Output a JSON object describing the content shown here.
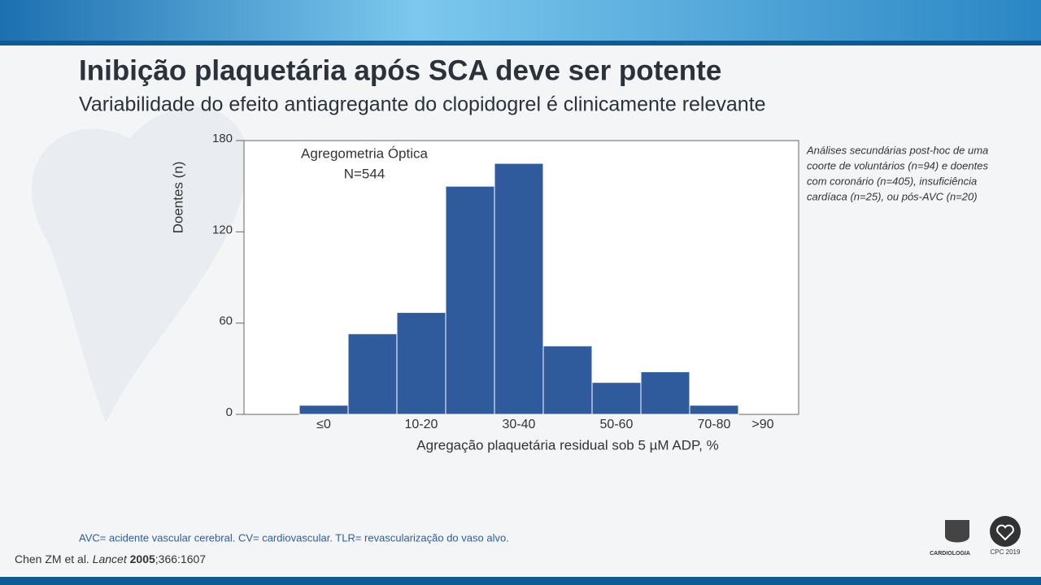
{
  "slide": {
    "title": "Inibição plaquetária após SCA deve ser potente",
    "subtitle": "Variabilidade do efeito antiagregante do clopidogrel é clinicamente relevante",
    "note": [
      "Análises secundárias post-hoc de uma",
      "coorte de voluntários (n=94) e doentes",
      "com coronário (n=405), insuficiência",
      "cardíaca (n=25), ou pós-AVC (n=20)"
    ],
    "footnote": "AVC= acidente vascular cerebral. CV= cardiovascular. TLR= revascularização do vaso alvo.",
    "citation": [
      "Chen ZM et al. ",
      "Lancet",
      " ",
      "2005",
      ";366:1607"
    ],
    "logos": [
      "CARDIOLOGIA",
      "CPC 2019"
    ]
  },
  "chart_data": {
    "type": "bar",
    "annotation": [
      "Agregometria Óptica",
      "N=544"
    ],
    "y_label": "Doentes (n)",
    "x_label": "Agregação plaquetária residual sob 5 µM ADP, %",
    "categories": [
      null,
      "≤0",
      null,
      "10-20",
      null,
      "30-40",
      null,
      "50-60",
      null,
      "70-80",
      ">90"
    ],
    "values": [
      0,
      6,
      53,
      67,
      150,
      165,
      45,
      21,
      28,
      6,
      0
    ],
    "color": "#2f5b9c",
    "ylim": [
      0,
      180
    ],
    "yticks": [
      0,
      60,
      120,
      180
    ],
    "grid": false
  }
}
